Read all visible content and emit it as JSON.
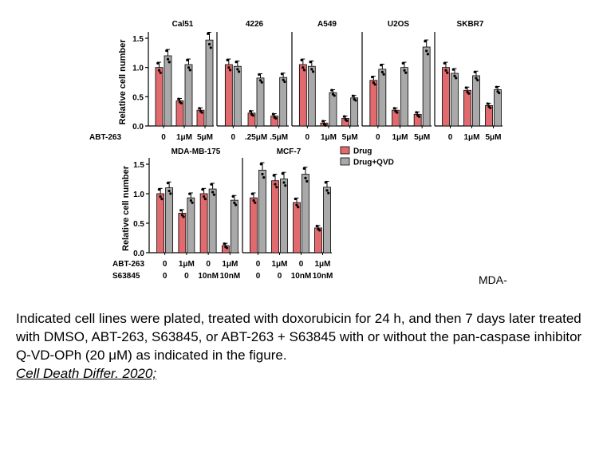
{
  "colors": {
    "drug": "#e06a6d",
    "qvd": "#a9a9a9"
  },
  "legend": {
    "drug": "Drug",
    "qvd": "Drug+QVD"
  },
  "stray_text": "MDA-",
  "caption": {
    "text": "Indicated cell lines were plated, treated with doxorubicin for 24 h, and then 7 days later treated with DMSO, ABT-263, S63845, or ABT-263 + S63845 with or without the pan-caspase inhibitor Q-VD-OPh (20 μM) as indicated in the figure.",
    "citation": "Cell Death Differ. 2020;"
  },
  "chart_data": [
    {
      "type": "bar",
      "ylabel": "Relative cell number",
      "ylim": [
        0,
        1.5
      ],
      "yticks": [
        "0.0",
        "0.5",
        "1.0",
        "1.5"
      ],
      "row_labels": [
        "ABT-263"
      ],
      "panels": [
        {
          "title": "Cal51",
          "categories": [
            "0",
            "1μM",
            "5μM"
          ],
          "series": [
            {
              "name": "Drug",
              "values": [
                1.0,
                0.43,
                0.27
              ]
            },
            {
              "name": "Drug+QVD",
              "values": [
                1.2,
                1.05,
                1.47
              ]
            }
          ]
        },
        {
          "title": "4226",
          "categories": [
            "0",
            ".25μM",
            ".5μM"
          ],
          "series": [
            {
              "name": "Drug",
              "values": [
                1.05,
                0.22,
                0.17
              ]
            },
            {
              "name": "Drug+QVD",
              "values": [
                1.02,
                0.82,
                0.83
              ]
            }
          ]
        },
        {
          "title": "A549",
          "categories": [
            "0",
            "1μM",
            "5μM"
          ],
          "series": [
            {
              "name": "Drug",
              "values": [
                1.05,
                0.05,
                0.13
              ]
            },
            {
              "name": "Drug+QVD",
              "values": [
                1.02,
                0.57,
                0.48
              ]
            }
          ]
        },
        {
          "title": "U2OS",
          "categories": [
            "0",
            "1μM",
            "5μM"
          ],
          "series": [
            {
              "name": "Drug",
              "values": [
                0.78,
                0.27,
                0.2
              ]
            },
            {
              "name": "Drug+QVD",
              "values": [
                0.97,
                1.0,
                1.35
              ]
            }
          ]
        },
        {
          "title": "SKBR7",
          "categories": [
            "0",
            "1μM",
            "5μM"
          ],
          "series": [
            {
              "name": "Drug",
              "values": [
                1.0,
                0.61,
                0.35
              ]
            },
            {
              "name": "Drug+QVD",
              "values": [
                0.9,
                0.86,
                0.62
              ]
            }
          ]
        }
      ]
    },
    {
      "type": "bar",
      "ylabel": "Relative cell number",
      "ylim": [
        0,
        1.5
      ],
      "yticks": [
        "0.0",
        "0.5",
        "1.0",
        "1.5"
      ],
      "row_labels": [
        "ABT-263",
        "S63845"
      ],
      "panels": [
        {
          "title": "MDA-MB-175",
          "categories": [
            [
              "0",
              "0"
            ],
            [
              "1μM",
              "0"
            ],
            [
              "0",
              "10nM"
            ],
            [
              "1μM",
              "10nM"
            ]
          ],
          "series": [
            {
              "name": "Drug",
              "values": [
                1.0,
                0.67,
                1.0,
                0.12
              ]
            },
            {
              "name": "Drug+QVD",
              "values": [
                1.1,
                0.93,
                1.08,
                0.89
              ]
            }
          ]
        },
        {
          "title": "MCF-7",
          "categories": [
            [
              "0",
              "0"
            ],
            [
              "1μM",
              "0"
            ],
            [
              "0",
              "10nM"
            ],
            [
              "1μM",
              "10nM"
            ]
          ],
          "series": [
            {
              "name": "Drug",
              "values": [
                0.93,
                1.22,
                0.85,
                0.42
              ]
            },
            {
              "name": "Drug+QVD",
              "values": [
                1.4,
                1.25,
                1.33,
                1.11
              ]
            }
          ]
        }
      ]
    }
  ]
}
